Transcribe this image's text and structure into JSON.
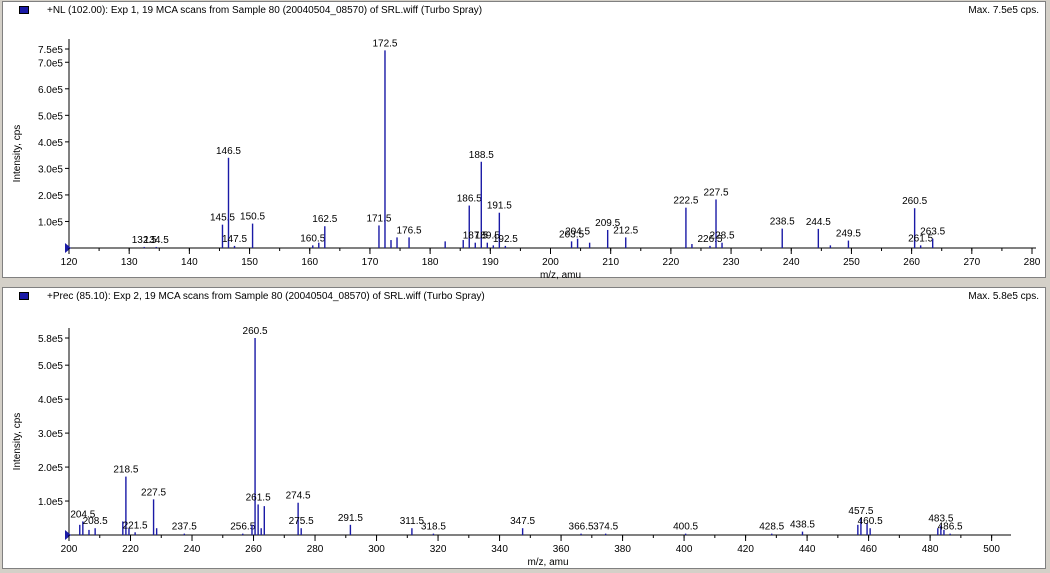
{
  "panels": [
    {
      "title": "+NL (102.00): Exp 1, 19 MCA scans from Sample 80 (20040504_08570) of SRL.wiff (Turbo Spray)",
      "max_label": "Max. 7.5e5 cps."
    },
    {
      "title": "+Prec (85.10): Exp 2, 19 MCA scans from Sample 80 (20040504_08570) of SRL.wiff (Turbo Spray)",
      "max_label": "Max. 5.8e5 cps."
    }
  ],
  "chart_data": [
    {
      "type": "bar",
      "xlabel": "m/z, amu",
      "ylabel": "Intensity, cps",
      "xlim": [
        120,
        280
      ],
      "ylim": [
        0,
        750000
      ],
      "xticks": [
        120,
        130,
        140,
        150,
        160,
        170,
        180,
        190,
        200,
        210,
        220,
        230,
        240,
        250,
        260,
        270,
        280
      ],
      "yticks": [
        {
          "v": 100000,
          "label": "1.0e5"
        },
        {
          "v": 200000,
          "label": "2.0e5"
        },
        {
          "v": 300000,
          "label": "3.0e5"
        },
        {
          "v": 400000,
          "label": "4.0e5"
        },
        {
          "v": 500000,
          "label": "5.0e5"
        },
        {
          "v": 600000,
          "label": "6.0e5"
        },
        {
          "v": 700000,
          "label": "7.0e5"
        },
        {
          "v": 750000,
          "label": "7.5e5"
        }
      ],
      "grid": false,
      "peaks": [
        {
          "x": 132.5,
          "y": 4000,
          "label": "132.5"
        },
        {
          "x": 134.5,
          "y": 4000,
          "label": "134.5"
        },
        {
          "x": 145.5,
          "y": 88000,
          "label": "145.5"
        },
        {
          "x": 146.5,
          "y": 340000,
          "label": "146.5"
        },
        {
          "x": 147.5,
          "y": 8000,
          "label": "147.5"
        },
        {
          "x": 150.5,
          "y": 92000,
          "label": "150.5"
        },
        {
          "x": 160.5,
          "y": 10000,
          "label": "160.5"
        },
        {
          "x": 161.5,
          "y": 20000
        },
        {
          "x": 162.5,
          "y": 82000,
          "label": "162.5"
        },
        {
          "x": 171.5,
          "y": 85000,
          "label": "171.5"
        },
        {
          "x": 172.5,
          "y": 745000,
          "label": "172.5"
        },
        {
          "x": 173.5,
          "y": 30000
        },
        {
          "x": 174.5,
          "y": 40000
        },
        {
          "x": 176.5,
          "y": 40000,
          "label": "176.5"
        },
        {
          "x": 182.5,
          "y": 25000
        },
        {
          "x": 185.5,
          "y": 30000
        },
        {
          "x": 186.5,
          "y": 160000,
          "label": "186.5"
        },
        {
          "x": 187.5,
          "y": 20000,
          "label": "187.5"
        },
        {
          "x": 188.5,
          "y": 325000,
          "label": "188.5"
        },
        {
          "x": 189.5,
          "y": 20000,
          "label": "189.5"
        },
        {
          "x": 190.5,
          "y": 10000
        },
        {
          "x": 191.5,
          "y": 133000,
          "label": "191.5"
        },
        {
          "x": 192.5,
          "y": 8000,
          "label": "192.5"
        },
        {
          "x": 203.5,
          "y": 25000,
          "label": "203.5"
        },
        {
          "x": 204.5,
          "y": 35000,
          "label": "204.5"
        },
        {
          "x": 206.5,
          "y": 20000
        },
        {
          "x": 209.5,
          "y": 68000,
          "label": "209.5"
        },
        {
          "x": 212.5,
          "y": 40000,
          "label": "212.5"
        },
        {
          "x": 222.5,
          "y": 152000,
          "label": "222.5"
        },
        {
          "x": 223.5,
          "y": 15000
        },
        {
          "x": 226.5,
          "y": 8000,
          "label": "226.5"
        },
        {
          "x": 227.5,
          "y": 183000,
          "label": "227.5"
        },
        {
          "x": 228.5,
          "y": 20000,
          "label": "228.5"
        },
        {
          "x": 238.5,
          "y": 73000,
          "label": "238.5"
        },
        {
          "x": 244.5,
          "y": 72000,
          "label": "244.5"
        },
        {
          "x": 246.5,
          "y": 10000
        },
        {
          "x": 249.5,
          "y": 28000,
          "label": "249.5"
        },
        {
          "x": 260.5,
          "y": 150000,
          "label": "260.5"
        },
        {
          "x": 261.5,
          "y": 10000,
          "label": "261.5"
        },
        {
          "x": 263.5,
          "y": 35000,
          "label": "263.5"
        }
      ]
    },
    {
      "type": "bar",
      "xlabel": "m/z, amu",
      "ylabel": "Intensity, cps",
      "xlim": [
        200,
        505
      ],
      "ylim": [
        0,
        580000
      ],
      "xticks": [
        200,
        220,
        240,
        260,
        280,
        300,
        320,
        340,
        360,
        380,
        400,
        420,
        440,
        460,
        480,
        500
      ],
      "yticks": [
        {
          "v": 100000,
          "label": "1.0e5"
        },
        {
          "v": 200000,
          "label": "2.0e5"
        },
        {
          "v": 300000,
          "label": "3.0e5"
        },
        {
          "v": 400000,
          "label": "4.0e5"
        },
        {
          "v": 500000,
          "label": "5.0e5"
        },
        {
          "v": 580000,
          "label": "5.8e5"
        }
      ],
      "grid": false,
      "peaks": [
        {
          "x": 203.5,
          "y": 30000
        },
        {
          "x": 204.5,
          "y": 40000,
          "label": "204.5"
        },
        {
          "x": 206.5,
          "y": 15000
        },
        {
          "x": 208.5,
          "y": 20000,
          "label": "208.5"
        },
        {
          "x": 217.5,
          "y": 40000
        },
        {
          "x": 218.5,
          "y": 172000,
          "label": "218.5"
        },
        {
          "x": 219.5,
          "y": 20000
        },
        {
          "x": 221.5,
          "y": 8000,
          "label": "221.5"
        },
        {
          "x": 227.5,
          "y": 105000,
          "label": "227.5"
        },
        {
          "x": 228.5,
          "y": 20000
        },
        {
          "x": 237.5,
          "y": 4000,
          "label": "237.5"
        },
        {
          "x": 256.5,
          "y": 4000,
          "label": "256.5"
        },
        {
          "x": 259.5,
          "y": 30000
        },
        {
          "x": 260.5,
          "y": 580000,
          "label": "260.5"
        },
        {
          "x": 261.5,
          "y": 90000,
          "label": "261.5"
        },
        {
          "x": 262.5,
          "y": 20000
        },
        {
          "x": 263.5,
          "y": 85000
        },
        {
          "x": 274.5,
          "y": 95000,
          "label": "274.5"
        },
        {
          "x": 275.5,
          "y": 20000,
          "label": "275.5"
        },
        {
          "x": 291.5,
          "y": 30000,
          "label": "291.5"
        },
        {
          "x": 311.5,
          "y": 20000,
          "label": "311.5"
        },
        {
          "x": 318.5,
          "y": 4000,
          "label": "318.5"
        },
        {
          "x": 347.5,
          "y": 20000,
          "label": "347.5"
        },
        {
          "x": 366.5,
          "y": 4000,
          "label": "366.5"
        },
        {
          "x": 374.5,
          "y": 4000,
          "label": "374.5"
        },
        {
          "x": 400.5,
          "y": 4000,
          "label": "400.5"
        },
        {
          "x": 428.5,
          "y": 4000,
          "label": "428.5"
        },
        {
          "x": 438.5,
          "y": 10000,
          "label": "438.5"
        },
        {
          "x": 456.5,
          "y": 30000
        },
        {
          "x": 457.5,
          "y": 50000,
          "label": "457.5"
        },
        {
          "x": 459.5,
          "y": 35000
        },
        {
          "x": 460.5,
          "y": 20000,
          "label": "460.5"
        },
        {
          "x": 482.5,
          "y": 20000
        },
        {
          "x": 483.5,
          "y": 28000,
          "label": "483.5"
        },
        {
          "x": 484.5,
          "y": 15000
        },
        {
          "x": 486.5,
          "y": 4000,
          "label": "486.5"
        }
      ]
    }
  ]
}
